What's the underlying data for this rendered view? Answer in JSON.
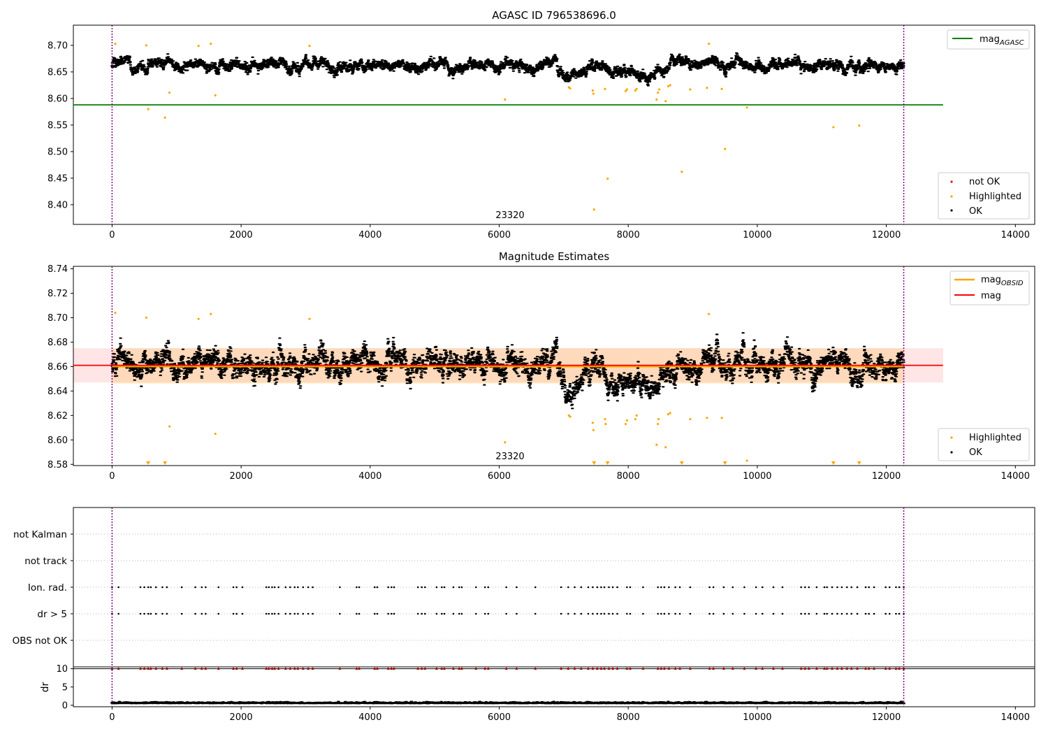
{
  "chart_data": [
    {
      "type": "scatter",
      "title": "AGASC ID 796538696.0",
      "xlim": [
        -600,
        14300
      ],
      "ylim": [
        8.363,
        8.738
      ],
      "xticks": [
        0,
        2000,
        4000,
        6000,
        8000,
        10000,
        12000,
        14000
      ],
      "yticks": [
        8.4,
        8.45,
        8.5,
        8.55,
        8.6,
        8.65,
        8.7
      ],
      "ytick_labels": [
        "8.40",
        "8.45",
        "8.50",
        "8.55",
        "8.60",
        "8.65",
        "8.70"
      ],
      "obsid_label": "23320",
      "obsid_label_x": 6130,
      "vlines": [
        0,
        12270
      ],
      "vline_color": "#800080",
      "hline": {
        "value": 8.588,
        "x_range": [
          -600,
          12880
        ],
        "color": "#008000"
      },
      "line_legend": {
        "position": "upper right",
        "entries": [
          {
            "label": "mag",
            "sub": "AGASC",
            "color": "#008000"
          }
        ]
      },
      "scatter_legend": {
        "position": "lower right",
        "entries": [
          {
            "label": "not OK",
            "color": "#ff0000"
          },
          {
            "label": "Highlighted",
            "color": "#ffa500"
          },
          {
            "label": "OK",
            "color": "#000000"
          }
        ]
      },
      "ok_series": {
        "name": "OK",
        "color": "#000000",
        "x_range": [
          0,
          12270
        ],
        "baseline": 8.663,
        "scatter": 0.01
      },
      "highlighted_series": {
        "name": "Highlighted",
        "color": "#ffa500",
        "points": [
          [
            50,
            8.703
          ],
          [
            530,
            8.7
          ],
          [
            560,
            8.58
          ],
          [
            820,
            8.564
          ],
          [
            890,
            8.611
          ],
          [
            1340,
            8.699
          ],
          [
            1530,
            8.703
          ],
          [
            1600,
            8.606
          ],
          [
            3060,
            8.699
          ],
          [
            6090,
            8.598
          ],
          [
            7080,
            8.621
          ],
          [
            7100,
            8.619
          ],
          [
            7450,
            8.615
          ],
          [
            7460,
            8.609
          ],
          [
            7470,
            8.391
          ],
          [
            7640,
            8.618
          ],
          [
            7680,
            8.449
          ],
          [
            7960,
            8.614
          ],
          [
            7980,
            8.617
          ],
          [
            8110,
            8.615
          ],
          [
            8130,
            8.618
          ],
          [
            8440,
            8.598
          ],
          [
            8460,
            8.611
          ],
          [
            8480,
            8.617
          ],
          [
            8580,
            8.595
          ],
          [
            8620,
            8.623
          ],
          [
            8650,
            8.625
          ],
          [
            8830,
            8.462
          ],
          [
            8960,
            8.617
          ],
          [
            9220,
            8.62
          ],
          [
            9250,
            8.703
          ],
          [
            9450,
            8.618
          ],
          [
            9500,
            8.505
          ],
          [
            9840,
            8.583
          ],
          [
            11180,
            8.546
          ],
          [
            11580,
            8.549
          ]
        ]
      }
    },
    {
      "type": "scatter",
      "title": "Magnitude Estimates",
      "xlim": [
        -600,
        14300
      ],
      "ylim": [
        8.579,
        8.742
      ],
      "xticks": [
        0,
        2000,
        4000,
        6000,
        8000,
        10000,
        12000,
        14000
      ],
      "yticks": [
        8.58,
        8.6,
        8.62,
        8.64,
        8.66,
        8.68,
        8.7,
        8.72,
        8.74
      ],
      "ytick_labels": [
        "8.58",
        "8.60",
        "8.62",
        "8.64",
        "8.66",
        "8.68",
        "8.70",
        "8.72",
        "8.74"
      ],
      "obsid_label": "23320",
      "obsid_label_x": 6130,
      "vlines": [
        0,
        12270
      ],
      "vline_color": "#800080",
      "mag_line": {
        "value": 8.661,
        "x_range": [
          -600,
          12880
        ],
        "band": [
          8.647,
          8.675
        ],
        "color": "#ff0000"
      },
      "mag_obsid_line": {
        "value": 8.66,
        "x_range": [
          0,
          12270
        ],
        "band": [
          8.646,
          8.675
        ],
        "color": "#ffa500"
      },
      "line_legend": {
        "position": "upper right",
        "entries": [
          {
            "label": "mag",
            "sub": "OBSID",
            "color": "#ffa500"
          },
          {
            "label": "mag",
            "sub": "",
            "color": "#ff0000"
          }
        ]
      },
      "scatter_legend": {
        "position": "lower right",
        "entries": [
          {
            "label": "Highlighted",
            "color": "#ffa500"
          },
          {
            "label": "OK",
            "color": "#000000"
          }
        ]
      },
      "ok_series": {
        "name": "OK",
        "color": "#000000",
        "x_range": [
          0,
          12270
        ],
        "baseline": 8.661,
        "scatter": 0.01
      },
      "highlighted_series": {
        "name": "Highlighted",
        "color": "#ffa500",
        "points": [
          [
            50,
            8.704
          ],
          [
            530,
            8.7
          ],
          [
            890,
            8.611
          ],
          [
            1340,
            8.699
          ],
          [
            1530,
            8.703
          ],
          [
            1600,
            8.605
          ],
          [
            3060,
            8.699
          ],
          [
            6090,
            8.598
          ],
          [
            7080,
            8.62
          ],
          [
            7100,
            8.619
          ],
          [
            7450,
            8.614
          ],
          [
            7460,
            8.608
          ],
          [
            7640,
            8.617
          ],
          [
            7650,
            8.613
          ],
          [
            7960,
            8.613
          ],
          [
            7980,
            8.616
          ],
          [
            8110,
            8.617
          ],
          [
            8130,
            8.62
          ],
          [
            8440,
            8.596
          ],
          [
            8460,
            8.613
          ],
          [
            8470,
            8.617
          ],
          [
            8580,
            8.594
          ],
          [
            8620,
            8.621
          ],
          [
            8650,
            8.622
          ],
          [
            8960,
            8.617
          ],
          [
            9220,
            8.618
          ],
          [
            9250,
            8.703
          ],
          [
            9450,
            8.618
          ],
          [
            9840,
            8.583
          ]
        ]
      },
      "clipped_markers": {
        "value": 8.58,
        "color": "#ffa500",
        "x": [
          560,
          820,
          7470,
          7680,
          8830,
          9500,
          11180,
          11580
        ]
      }
    },
    {
      "type": "scatter",
      "title": "",
      "xlim": [
        -600,
        14300
      ],
      "ylim": [
        0,
        6
      ],
      "categories": [
        "OBS not OK",
        "dr > 5",
        "Ion. rad.",
        "not track",
        "not Kalman"
      ],
      "vlines": [
        0,
        12270
      ],
      "vline_color": "#800080",
      "flag_times": [
        0,
        100,
        440,
        500,
        560,
        600,
        680,
        780,
        850,
        1080,
        1290,
        1390,
        1450,
        1650,
        1880,
        1930,
        2020,
        2390,
        2430,
        2480,
        2520,
        2580,
        2690,
        2760,
        2830,
        2880,
        2960,
        3040,
        3110,
        3530,
        3790,
        3830,
        4070,
        4110,
        4280,
        4330,
        4370,
        4740,
        4800,
        4850,
        5030,
        5110,
        5150,
        5290,
        5380,
        5420,
        5640,
        5780,
        5830,
        6110,
        6270,
        6560,
        6960,
        7070,
        7170,
        7270,
        7380,
        7450,
        7520,
        7580,
        7630,
        7700,
        7760,
        7830,
        7980,
        8030,
        8230,
        8460,
        8510,
        8560,
        8630,
        8730,
        8800,
        8960,
        9260,
        9320,
        9480,
        9620,
        9800,
        9980,
        10080,
        10250,
        10390,
        10680,
        10740,
        10800,
        10920,
        11040,
        11080,
        11160,
        11240,
        11310,
        11390,
        11460,
        11550,
        11680,
        11730,
        11810,
        11990,
        12050,
        12150,
        12200,
        12270
      ]
    },
    {
      "type": "scatter",
      "title": "",
      "ylabel": "dr",
      "xlim": [
        -600,
        14300
      ],
      "ylim": [
        -0.4,
        10.5
      ],
      "xticks": [
        0,
        2000,
        4000,
        6000,
        8000,
        10000,
        12000,
        14000
      ],
      "yticks": [
        0,
        5,
        10
      ],
      "hline": {
        "value": 10,
        "color": "#000000"
      },
      "vlines": [
        0,
        12270
      ],
      "vline_color": "#800080",
      "dr_series": {
        "color": "#000000",
        "x_range": [
          0,
          12270
        ],
        "baseline": 0.5,
        "scatter": 0.35
      },
      "flagged_marker": {
        "color": "#ff0000",
        "value": 10
      }
    }
  ]
}
